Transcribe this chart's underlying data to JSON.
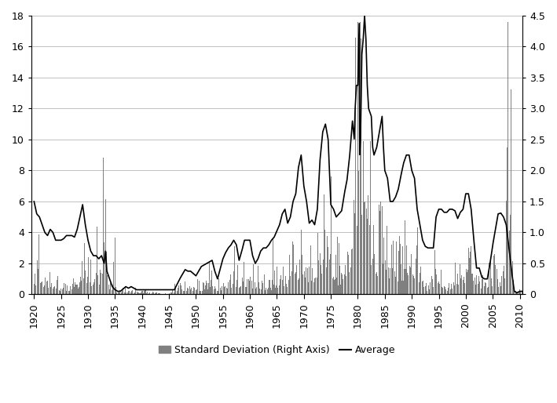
{
  "xlim": [
    1919.5,
    2010.5
  ],
  "ylim_left": [
    0,
    18
  ],
  "ylim_right": [
    0,
    4.5
  ],
  "yticks_left": [
    0,
    2,
    4,
    6,
    8,
    10,
    12,
    14,
    16,
    18
  ],
  "yticks_right": [
    0,
    0.5,
    1.0,
    1.5,
    2.0,
    2.5,
    3.0,
    3.5,
    4.0,
    4.5
  ],
  "xticks": [
    1920,
    1925,
    1930,
    1935,
    1940,
    1945,
    1950,
    1955,
    1960,
    1965,
    1970,
    1975,
    1980,
    1985,
    1990,
    1995,
    2000,
    2005,
    2010
  ],
  "bar_color": "#808080",
  "line_color": "#000000",
  "background_color": "#ffffff",
  "legend_bar_label": "Standard Deviation (Right Axis)",
  "legend_line_label": "Average",
  "grid_color": "#c0c0c0"
}
